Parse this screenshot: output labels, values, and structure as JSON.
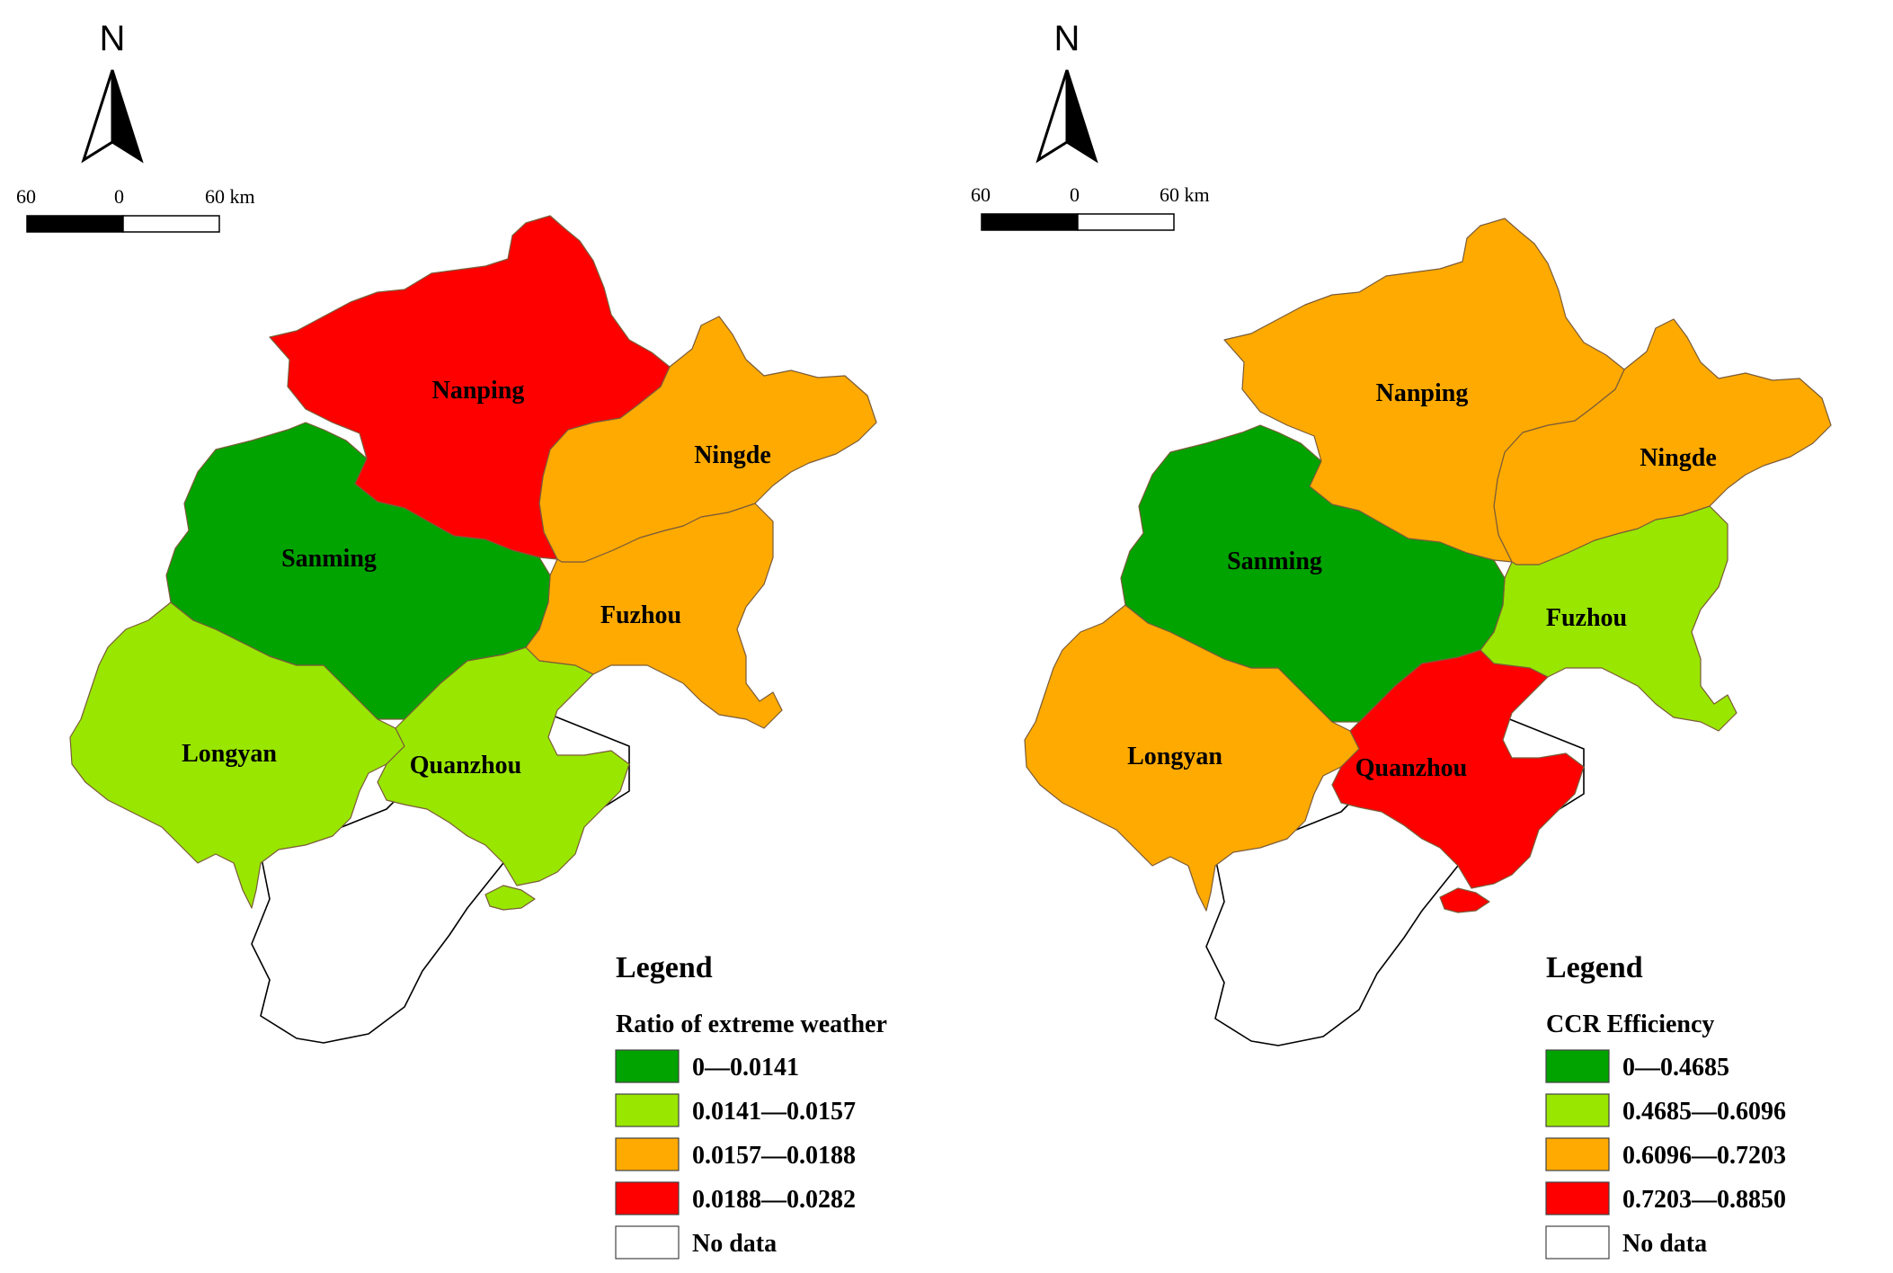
{
  "colors": {
    "class1": "#00A300",
    "class2": "#99E600",
    "class3": "#FFAA00",
    "class4": "#FF0000",
    "nodata": "#FFFFFF"
  },
  "north_arrow": {
    "label": "N"
  },
  "scale_bar": {
    "left": "60",
    "center": "0",
    "right": "60 km"
  },
  "maps": [
    {
      "legend_title": "Legend",
      "variable": "Ratio of extreme weather",
      "classes": [
        "0—0.0141",
        "0.0141—0.0157",
        "0.0157—0.0188",
        "0.0188—0.0282",
        "No data"
      ],
      "regions": [
        {
          "name": "Nanping",
          "class": "class4"
        },
        {
          "name": "Ningde",
          "class": "class3"
        },
        {
          "name": "Sanming",
          "class": "class1"
        },
        {
          "name": "Fuzhou",
          "class": "class3"
        },
        {
          "name": "Longyan",
          "class": "class2"
        },
        {
          "name": "Quanzhou",
          "class": "class2"
        }
      ]
    },
    {
      "legend_title": "Legend",
      "variable": "CCR Efficiency",
      "classes": [
        "0—0.4685",
        "0.4685—0.6096",
        "0.6096—0.7203",
        "0.7203—0.8850",
        "No data"
      ],
      "regions": [
        {
          "name": "Nanping",
          "class": "class3"
        },
        {
          "name": "Ningde",
          "class": "class3"
        },
        {
          "name": "Sanming",
          "class": "class1"
        },
        {
          "name": "Fuzhou",
          "class": "class2"
        },
        {
          "name": "Longyan",
          "class": "class3"
        },
        {
          "name": "Quanzhou",
          "class": "class4"
        }
      ]
    }
  ]
}
